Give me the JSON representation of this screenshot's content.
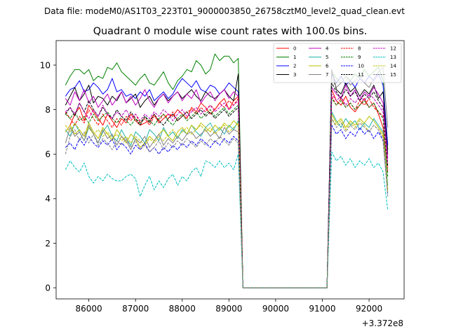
{
  "figure": {
    "suptitle": "Data file: modeM0/AS1T03_223T01_9000003850_26758cztM0_level2_quad_clean.evt"
  },
  "chart_data": {
    "type": "line",
    "title": "Quadrant 0 module wise count rates with 100.0s bins.",
    "xlabel": "",
    "ylabel": "",
    "x_offset_label": "+3.372e8",
    "xlim": [
      85300,
      92750
    ],
    "ylim": [
      -0.5,
      11.1
    ],
    "x_ticks": [
      86000,
      87000,
      88000,
      89000,
      90000,
      91000,
      92000
    ],
    "y_ticks": [
      0,
      2,
      4,
      6,
      8,
      10
    ],
    "legend_location": "upper right",
    "legend_columns": 4,
    "x_segments": [
      {
        "start": 85500,
        "end": 89200,
        "step": 100
      },
      {
        "start": 89300,
        "end": 91100,
        "step": 100
      },
      {
        "start": 91200,
        "end": 92400,
        "step": 100
      }
    ],
    "series": [
      {
        "name": "0",
        "color": "#ff0000",
        "dash": "solid",
        "seg1": [
          7.0,
          7.3,
          7.8,
          8.1,
          7.5,
          8.2,
          7.9,
          7.6,
          7.3,
          7.8,
          7.5,
          7.2,
          7.6,
          7.4,
          7.8,
          7.5,
          7.3,
          7.4,
          7.5,
          7.8,
          7.4,
          7.6,
          7.8,
          7.7,
          8.0,
          7.8,
          7.6,
          8.1,
          7.9,
          8.3,
          8.1,
          7.8,
          8.0,
          8.3,
          8.5,
          8.0,
          8.4,
          8.6
        ],
        "seg3": [
          8.9,
          8.4,
          8.2,
          8.6,
          8.1,
          7.9,
          8.2,
          8.5,
          8.1,
          8.3,
          7.8,
          7.2,
          5.2
        ]
      },
      {
        "name": "1",
        "color": "#008000",
        "dash": "solid",
        "seg1": [
          9.1,
          9.5,
          9.8,
          9.8,
          9.6,
          9.8,
          9.3,
          9.5,
          9.4,
          9.9,
          9.8,
          10.1,
          9.7,
          9.5,
          9.3,
          9.1,
          9.4,
          9.6,
          9.2,
          9.1,
          9.4,
          9.7,
          9.2,
          8.9,
          9.3,
          9.5,
          9.8,
          9.7,
          10.2,
          10.0,
          9.6,
          9.8,
          10.5,
          10.2,
          10.4,
          10.4,
          10.1,
          10.3
        ],
        "seg3": [
          9.7,
          9.4,
          9.2,
          9.5,
          9.3,
          9.6,
          9.4,
          9.8,
          9.5,
          9.7,
          9.9,
          9.3,
          6.2
        ]
      },
      {
        "name": "2",
        "color": "#0000ff",
        "dash": "solid",
        "seg1": [
          8.6,
          8.9,
          9.0,
          9.3,
          8.8,
          8.9,
          9.2,
          9.0,
          8.7,
          8.9,
          9.4,
          8.8,
          8.9,
          8.6,
          8.7,
          8.5,
          8.8,
          8.6,
          8.9,
          8.4,
          8.6,
          8.8,
          8.5,
          8.7,
          9.1,
          9.4,
          9.2,
          9.0,
          9.3,
          8.9,
          8.8,
          9.1,
          9.0,
          8.7,
          8.9,
          9.2,
          9.0,
          8.8
        ],
        "seg3": [
          9.6,
          9.2,
          9.5,
          9.1,
          9.3,
          9.0,
          9.4,
          9.2,
          9.5,
          9.3,
          9.6,
          9.1,
          6.4
        ]
      },
      {
        "name": "3",
        "color": "#000000",
        "dash": "solid",
        "seg1": [
          8.2,
          8.6,
          9.0,
          8.4,
          8.7,
          9.1,
          8.3,
          8.6,
          8.5,
          8.2,
          8.6,
          8.4,
          8.8,
          8.3,
          8.5,
          8.7,
          8.1,
          8.4,
          8.6,
          8.2,
          8.5,
          8.7,
          8.4,
          8.6,
          8.8,
          8.5,
          8.7,
          8.9,
          8.6,
          8.4,
          8.8,
          8.6,
          8.5,
          8.7,
          8.9,
          8.6,
          8.4,
          9.6
        ],
        "seg3": [
          9.8,
          8.9,
          8.7,
          9.2,
          8.8,
          9.0,
          8.6,
          8.9,
          8.7,
          9.1,
          8.5,
          8.8,
          6.0
        ]
      },
      {
        "name": "4",
        "color": "#bf00bf",
        "dash": "solid",
        "seg1": [
          8.5,
          8.2,
          8.8,
          8.4,
          8.9,
          8.3,
          8.6,
          8.1,
          8.4,
          8.7,
          8.2,
          8.5,
          8.8,
          8.3,
          8.6,
          8.2,
          8.5,
          8.9,
          8.4,
          8.1,
          8.5,
          8.7,
          8.3,
          8.6,
          8.8,
          8.4,
          8.7,
          8.5,
          8.9,
          8.3,
          8.6,
          8.8,
          8.4,
          8.7,
          8.9,
          8.5,
          8.8,
          8.6
        ],
        "seg3": [
          9.0,
          8.7,
          8.5,
          9.1,
          8.6,
          8.9,
          8.4,
          8.8,
          8.6,
          9.0,
          8.7,
          8.3,
          5.8
        ]
      },
      {
        "name": "5",
        "color": "#20b2aa",
        "dash": "solid",
        "seg1": [
          7.1,
          6.8,
          7.4,
          7.0,
          6.6,
          7.2,
          6.9,
          6.5,
          7.0,
          7.3,
          6.8,
          6.6,
          7.1,
          6.7,
          6.4,
          7.0,
          6.8,
          6.5,
          7.1,
          6.9,
          6.6,
          7.2,
          6.8,
          7.0,
          6.7,
          7.1,
          6.9,
          7.3,
          7.0,
          6.8,
          7.2,
          7.4,
          7.0,
          7.2,
          6.9,
          7.3,
          7.1,
          7.5
        ],
        "seg3": [
          7.9,
          7.5,
          7.2,
          7.6,
          7.3,
          7.5,
          7.1,
          7.4,
          7.2,
          7.6,
          7.3,
          7.0,
          4.6
        ]
      },
      {
        "name": "6",
        "color": "#bfbf00",
        "dash": "solid",
        "seg1": [
          7.0,
          7.3,
          6.9,
          7.1,
          6.8,
          7.4,
          7.0,
          6.7,
          7.2,
          6.9,
          6.6,
          7.1,
          6.8,
          6.5,
          6.9,
          6.7,
          6.3,
          6.5,
          6.8,
          6.6,
          6.9,
          7.1,
          6.8,
          6.6,
          7.0,
          7.2,
          6.9,
          7.3,
          7.1,
          7.4,
          7.2,
          7.0,
          7.3,
          7.1,
          7.4,
          7.2,
          7.5,
          7.3
        ],
        "seg3": [
          7.8,
          7.4,
          7.6,
          7.2,
          7.5,
          7.3,
          7.6,
          7.4,
          7.7,
          7.5,
          7.2,
          6.9,
          4.4
        ]
      },
      {
        "name": "7",
        "color": "#808080",
        "dash": "solid",
        "seg1": [
          6.5,
          7.2,
          6.8,
          7.0,
          6.6,
          7.3,
          6.9,
          6.5,
          7.1,
          6.7,
          6.9,
          6.4,
          6.8,
          6.6,
          6.2,
          6.7,
          6.5,
          6.8,
          6.3,
          6.6,
          6.9,
          6.4,
          6.7,
          6.5,
          6.8,
          6.6,
          6.9,
          7.0,
          6.7,
          6.9,
          7.1,
          6.8,
          7.0,
          6.7,
          7.2,
          6.9,
          7.1,
          7.0
        ],
        "seg3": [
          9.4,
          9.0,
          9.2,
          9.5,
          9.1,
          9.3,
          9.6,
          9.2,
          9.0,
          9.4,
          9.7,
          9.9,
          7.2
        ]
      },
      {
        "name": "8",
        "color": "#ff0000",
        "dash": "dashed",
        "seg1": [
          7.9,
          7.6,
          7.3,
          7.7,
          7.4,
          8.0,
          7.6,
          7.3,
          7.8,
          7.5,
          7.2,
          7.6,
          7.3,
          7.7,
          7.5,
          7.8,
          7.4,
          7.6,
          7.3,
          7.7,
          7.5,
          7.8,
          7.6,
          7.9,
          7.5,
          7.7,
          7.9,
          8.0,
          7.8,
          8.1,
          7.9,
          8.2,
          8.0,
          8.3,
          8.1,
          8.4,
          8.2,
          8.5
        ],
        "seg3": [
          8.6,
          8.2,
          8.5,
          8.1,
          8.3,
          8.0,
          8.4,
          8.2,
          8.5,
          8.1,
          7.9,
          7.7,
          5.4
        ]
      },
      {
        "name": "9",
        "color": "#008000",
        "dash": "dashed",
        "seg1": [
          7.8,
          7.6,
          7.9,
          7.5,
          7.7,
          7.4,
          7.8,
          7.5,
          7.7,
          7.9,
          7.6,
          7.4,
          7.7,
          7.5,
          7.3,
          7.6,
          7.4,
          7.7,
          7.5,
          7.3,
          7.6,
          7.8,
          7.5,
          7.3,
          7.6,
          7.8,
          7.5,
          7.7,
          7.9,
          7.6,
          7.8,
          8.0,
          7.7,
          7.9,
          8.1,
          7.8,
          8.0,
          8.2
        ],
        "seg3": [
          8.5,
          8.2,
          8.4,
          8.1,
          8.3,
          8.0,
          8.2,
          8.4,
          8.1,
          8.3,
          7.9,
          7.6,
          5.0
        ]
      },
      {
        "name": "10",
        "color": "#0000ff",
        "dash": "dashed",
        "seg1": [
          6.3,
          6.5,
          6.2,
          6.7,
          6.4,
          6.8,
          6.5,
          6.3,
          6.6,
          6.4,
          6.7,
          6.2,
          6.5,
          6.3,
          6.0,
          6.4,
          6.2,
          6.5,
          6.1,
          6.3,
          6.0,
          6.3,
          6.1,
          6.4,
          6.2,
          6.5,
          6.3,
          6.6,
          6.4,
          6.7,
          6.5,
          6.3,
          6.6,
          6.4,
          6.7,
          6.5,
          6.8,
          6.6
        ],
        "seg3": [
          7.3,
          6.9,
          7.1,
          6.7,
          7.0,
          6.8,
          7.2,
          6.9,
          7.1,
          6.7,
          7.0,
          6.6,
          4.2
        ]
      },
      {
        "name": "11",
        "color": "#000000",
        "dash": "dashed",
        "seg1": [
          7.8,
          8.1,
          7.7,
          8.3,
          7.9,
          8.4,
          8.0,
          7.7,
          8.1,
          7.8,
          7.6,
          8.0,
          7.7,
          7.5,
          7.9,
          7.6,
          7.3,
          7.7,
          7.4,
          7.8,
          7.5,
          7.3,
          7.6,
          7.8,
          7.5,
          7.7,
          7.9,
          7.6,
          7.8,
          8.0,
          7.7,
          7.9,
          7.6,
          7.8,
          8.0,
          7.7,
          7.9,
          8.1
        ],
        "seg3": [
          9.2,
          8.8,
          8.5,
          8.9,
          8.6,
          8.8,
          8.4,
          8.7,
          8.5,
          8.8,
          8.4,
          8.1,
          5.5
        ]
      },
      {
        "name": "12",
        "color": "#bf00bf",
        "dash": "dashed",
        "seg1": [
          7.9,
          8.1,
          7.8,
          8.3,
          7.9,
          7.6,
          8.0,
          7.7,
          8.2,
          7.8,
          7.6,
          7.9,
          7.7,
          8.0,
          7.6,
          7.8,
          7.5,
          7.8,
          7.6,
          7.9,
          7.7,
          8.0,
          7.8,
          7.5,
          7.8,
          8.0,
          7.7,
          7.9,
          8.1,
          7.8,
          8.0,
          8.2,
          7.9,
          8.1,
          8.3,
          8.0,
          8.2,
          8.4
        ],
        "seg3": [
          8.7,
          8.4,
          8.6,
          8.2,
          8.5,
          8.3,
          8.6,
          8.4,
          8.7,
          8.5,
          8.2,
          7.9,
          5.6
        ]
      },
      {
        "name": "13",
        "color": "#00bfbf",
        "dash": "dashed",
        "seg1": [
          5.3,
          5.7,
          5.4,
          5.2,
          5.6,
          5.0,
          4.7,
          5.0,
          4.8,
          5.1,
          4.9,
          4.8,
          4.8,
          5.0,
          5.1,
          4.9,
          4.1,
          4.6,
          5.0,
          4.4,
          4.8,
          4.5,
          4.9,
          5.1,
          4.6,
          5.0,
          4.8,
          5.2,
          5.4,
          5.0,
          5.7,
          5.6,
          5.4,
          5.7,
          5.4,
          5.6,
          5.3,
          6.0
        ],
        "seg3": [
          6.1,
          5.7,
          5.9,
          5.5,
          5.8,
          5.4,
          5.7,
          5.5,
          5.8,
          5.4,
          5.6,
          5.2,
          3.5
        ]
      },
      {
        "name": "14",
        "color": "#bfbf00",
        "dash": "dashed",
        "seg1": [
          7.3,
          7.0,
          7.4,
          7.1,
          6.8,
          7.2,
          6.9,
          7.1,
          6.8,
          7.0,
          6.7,
          6.9,
          6.6,
          6.8,
          6.5,
          6.8,
          6.6,
          6.4,
          6.7,
          6.5,
          6.8,
          6.6,
          6.9,
          7.1,
          6.8,
          7.0,
          7.2,
          6.9,
          7.1,
          7.3,
          7.0,
          7.2,
          6.9,
          7.1,
          7.3,
          7.0,
          7.2,
          7.4
        ],
        "seg3": [
          7.6,
          7.3,
          7.5,
          7.1,
          7.4,
          7.2,
          7.5,
          7.3,
          7.0,
          7.3,
          7.1,
          6.8,
          4.3
        ]
      },
      {
        "name": "15",
        "color": "#808080",
        "dash": "dashed",
        "seg1": [
          6.0,
          6.8,
          7.1,
          6.6,
          7.0,
          6.5,
          6.9,
          6.4,
          6.7,
          6.5,
          6.2,
          6.6,
          6.4,
          6.7,
          6.3,
          6.6,
          6.2,
          6.4,
          6.1,
          6.3,
          6.6,
          6.2,
          6.5,
          6.3,
          6.6,
          6.4,
          6.7,
          6.5,
          6.3,
          6.6,
          6.4,
          6.7,
          6.5,
          6.8,
          6.6,
          6.4,
          6.7,
          6.5
        ],
        "seg3": [
          7.6,
          7.2,
          7.4,
          7.0,
          7.3,
          7.1,
          7.4,
          7.2,
          7.0,
          7.3,
          7.1,
          6.7,
          4.1
        ]
      }
    ]
  }
}
